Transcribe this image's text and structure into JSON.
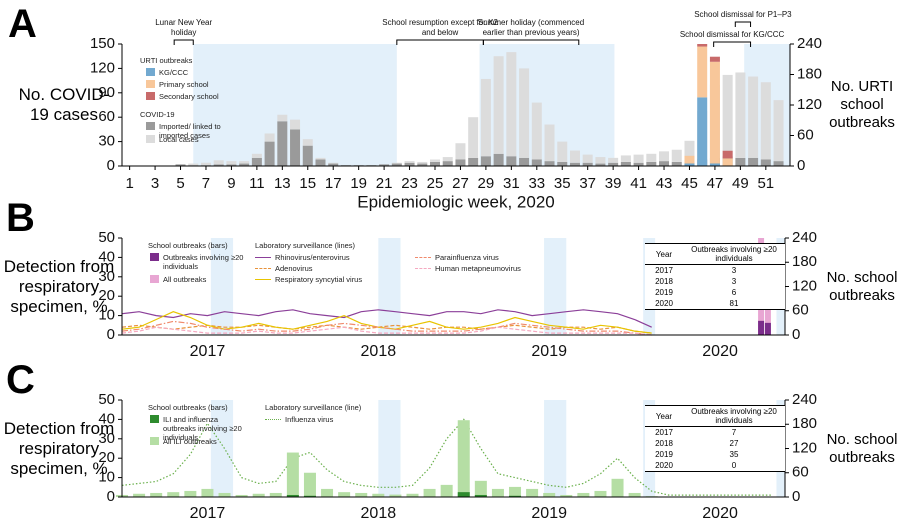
{
  "chart_data": [
    {
      "type": "bar",
      "panel_label": "A",
      "xlabel": "Epidemiologic week, 2020",
      "ylabel": "No. COVID-19 cases",
      "y2label": "No. URTI school outbreaks",
      "xlim": [
        0.4,
        52.9
      ],
      "xticks": [
        1,
        3,
        5,
        7,
        9,
        11,
        13,
        15,
        17,
        19,
        21,
        23,
        25,
        27,
        29,
        31,
        33,
        35,
        37,
        39,
        41,
        43,
        45,
        47,
        49,
        51
      ],
      "ylim": [
        0,
        150
      ],
      "yticks": [
        0,
        30,
        60,
        90,
        120,
        150
      ],
      "y2lim": [
        0,
        240
      ],
      "y2ticks": [
        0,
        60,
        120,
        180,
        240
      ],
      "shaded": [
        [
          6,
          22
        ],
        [
          28.5,
          39.1
        ],
        [
          49.3,
          52.9
        ]
      ],
      "annotations": [
        {
          "text": "Lunar New Year holiday",
          "x": [
            4.5,
            6
          ]
        },
        {
          "text": "School resumption except for K2 and below",
          "x": [
            22,
            28.8
          ]
        },
        {
          "text": "Summer holiday (commenced earlier than previous years)",
          "x": [
            28.8,
            36.3
          ]
        },
        {
          "text": "School dismissal for P1–P3",
          "x": [
            48.6,
            49.8
          ]
        },
        {
          "text": "School dismissal for KG/CCC",
          "x": [
            46.9,
            49.8
          ]
        }
      ],
      "x": [
        1,
        2,
        3,
        4,
        5,
        6,
        7,
        8,
        9,
        10,
        11,
        12,
        13,
        14,
        15,
        16,
        17,
        18,
        19,
        20,
        21,
        22,
        23,
        24,
        25,
        26,
        27,
        28,
        29,
        30,
        31,
        32,
        33,
        34,
        35,
        36,
        37,
        38,
        39,
        40,
        41,
        42,
        43,
        44,
        45,
        46,
        47,
        48,
        49,
        50,
        51,
        52
      ],
      "series_groups": [
        {
          "title": "URTI outbreaks",
          "mark": "bar",
          "axis": "y2",
          "stacked": true,
          "series": [
            {
              "name": "KG/CCC",
              "color": "#72a9d0",
              "x": [
                45,
                46,
                47,
                48
              ],
              "values": [
                5,
                135,
                5,
                0
              ]
            },
            {
              "name": "Primary school",
              "color": "#f8c79a",
              "x": [
                45,
                46,
                47,
                48
              ],
              "values": [
                15,
                100,
                200,
                15
              ]
            },
            {
              "name": "Secondary school",
              "color": "#c86a6a",
              "x": [
                45,
                46,
                47,
                48
              ],
              "values": [
                0,
                5,
                10,
                15
              ]
            }
          ]
        },
        {
          "title": "COVID-19",
          "mark": "bar",
          "stacked": true,
          "series": [
            {
              "name": "Imported/ linked to imported cases",
              "color": "#9a9a9a",
              "values": [
                0,
                0,
                0,
                0,
                2,
                1,
                1,
                2,
                2,
                3,
                10,
                30,
                55,
                45,
                25,
                8,
                3,
                1,
                1,
                1,
                2,
                3,
                4,
                3,
                5,
                6,
                8,
                10,
                12,
                15,
                12,
                10,
                8,
                6,
                5,
                4,
                4,
                3,
                4,
                5,
                4,
                5,
                6,
                5,
                6,
                8,
                10,
                12,
                10,
                10,
                8,
                6
              ]
            },
            {
              "name": "Local cases",
              "color": "#dcdcdc",
              "values": [
                0,
                0,
                0,
                0,
                0,
                2,
                3,
                5,
                4,
                3,
                5,
                10,
                8,
                12,
                8,
                2,
                1,
                0,
                0,
                0,
                0,
                1,
                2,
                2,
                3,
                5,
                20,
                50,
                95,
                120,
                128,
                110,
                70,
                45,
                25,
                15,
                10,
                8,
                6,
                8,
                10,
                10,
                12,
                15,
                25,
                60,
                90,
                100,
                105,
                100,
                95,
                75
              ]
            }
          ]
        }
      ]
    },
    {
      "type": "combo",
      "panel_label": "B",
      "ylabel": "Detection from respiratory specimen, %",
      "y2label": "No. school outbreaks",
      "xlim": [
        2017,
        2020.88
      ],
      "xticks": [
        {
          "value": 2017.5,
          "label": "2017"
        },
        {
          "value": 2018.5,
          "label": "2018"
        },
        {
          "value": 2019.5,
          "label": "2019"
        },
        {
          "value": 2020.5,
          "label": "2020"
        }
      ],
      "ylim": [
        0,
        50
      ],
      "yticks": [
        0,
        10,
        20,
        30,
        40,
        50
      ],
      "y2lim": [
        0,
        240
      ],
      "y2ticks": [
        0,
        60,
        120,
        180,
        240
      ],
      "shaded": [
        [
          2017.52,
          2017.65
        ],
        [
          2018.5,
          2018.63
        ],
        [
          2019.47,
          2019.6
        ],
        [
          2020.05,
          2020.12
        ],
        [
          2020.83,
          2020.88
        ]
      ],
      "x": [
        2017,
        2017.1,
        2017.2,
        2017.3,
        2017.4,
        2017.5,
        2017.6,
        2017.7,
        2017.8,
        2017.9,
        2018,
        2018.1,
        2018.2,
        2018.3,
        2018.4,
        2018.5,
        2018.6,
        2018.7,
        2018.8,
        2018.9,
        2019,
        2019.1,
        2019.2,
        2019.3,
        2019.4,
        2019.5,
        2019.6,
        2019.7,
        2019.8,
        2019.9,
        2020,
        2020.1,
        2020.2,
        2020.3,
        2020.4,
        2020.5,
        2020.6,
        2020.7,
        2020.8
      ],
      "series_groups": [
        {
          "title": "School outbreaks (bars)",
          "mark": "bar",
          "axis": "y2",
          "stacked": false,
          "series": [
            {
              "name": "Outbreaks involving ≥20 individuals",
              "color": "#7b2d8b",
              "x": [
                2020.74,
                2020.78
              ],
              "values": [
                35,
                30
              ]
            },
            {
              "name": "All outbreaks",
              "color": "#e8a6d3",
              "x": [
                2020.74,
                2020.78
              ],
              "values": [
                240,
                185
              ]
            }
          ]
        },
        {
          "title": "Laboratory surveillance (lines)",
          "mark": "line",
          "series": [
            {
              "name": "Rhinovirus/enterovirus",
              "color": "#8b3f99",
              "dash": "solid",
              "values": [
                11,
                12,
                10,
                9,
                11,
                10,
                12,
                11,
                10,
                12,
                13,
                11,
                10,
                9,
                12,
                13,
                12,
                11,
                10,
                12,
                12,
                11,
                13,
                12,
                10,
                11,
                12,
                13,
                12,
                11,
                8,
                4,
                null,
                null,
                null,
                null,
                null,
                null,
                null
              ]
            },
            {
              "name": "Adenovirus",
              "color": "#e8923a",
              "dash": "dashed",
              "values": [
                4,
                5,
                4,
                3,
                4,
                5,
                4,
                4,
                5,
                4,
                3,
                4,
                5,
                4,
                3,
                4,
                5,
                4,
                3,
                4,
                4,
                3,
                4,
                5,
                4,
                3,
                4,
                4,
                3,
                4,
                2,
                1,
                null,
                null,
                null,
                null,
                null,
                null,
                null
              ]
            },
            {
              "name": "Respiratory syncytial virus",
              "color": "#e8c400",
              "dash": "solid",
              "values": [
                3,
                4,
                8,
                12,
                9,
                5,
                3,
                4,
                6,
                4,
                3,
                5,
                7,
                10,
                6,
                4,
                3,
                5,
                7,
                4,
                3,
                4,
                6,
                9,
                7,
                5,
                4,
                3,
                5,
                4,
                2,
                1,
                null,
                null,
                null,
                null,
                null,
                null,
                null
              ]
            },
            {
              "name": "Parainfluenza virus",
              "color": "#f08a6c",
              "dash": "dashdot",
              "values": [
                2,
                3,
                5,
                7,
                6,
                4,
                3,
                2,
                3,
                2,
                2,
                3,
                5,
                6,
                5,
                4,
                3,
                2,
                2,
                2,
                2,
                3,
                4,
                6,
                5,
                4,
                3,
                2,
                2,
                2,
                1,
                0,
                null,
                null,
                null,
                null,
                null,
                null,
                null
              ]
            },
            {
              "name": "Human metapneumovirus",
              "color": "#f5a9c0",
              "dash": "dashed",
              "values": [
                1,
                2,
                4,
                3,
                2,
                1,
                1,
                1,
                2,
                1,
                1,
                2,
                3,
                4,
                2,
                1,
                1,
                1,
                1,
                1,
                1,
                2,
                4,
                3,
                2,
                1,
                1,
                1,
                1,
                1,
                1,
                0,
                null,
                null,
                null,
                null,
                null,
                null,
                null
              ]
            }
          ]
        }
      ],
      "table": {
        "header": [
          "Year",
          "Outbreaks involving ≥20 individuals"
        ],
        "rows": [
          [
            2017,
            3
          ],
          [
            2018,
            3
          ],
          [
            2019,
            6
          ],
          [
            2020,
            81
          ]
        ]
      }
    },
    {
      "type": "combo",
      "panel_label": "C",
      "ylabel": "Detection from respiratory specimen, %",
      "y2label": "No. school outbreaks",
      "xlim": [
        2017,
        2020.88
      ],
      "xticks": [
        {
          "value": 2017.5,
          "label": "2017"
        },
        {
          "value": 2018.5,
          "label": "2018"
        },
        {
          "value": 2019.5,
          "label": "2019"
        },
        {
          "value": 2020.5,
          "label": "2020"
        }
      ],
      "ylim": [
        0,
        50
      ],
      "yticks": [
        0,
        10,
        20,
        30,
        40,
        50
      ],
      "y2lim": [
        0,
        240
      ],
      "y2ticks": [
        0,
        60,
        120,
        180,
        240
      ],
      "shaded": [
        [
          2017.52,
          2017.65
        ],
        [
          2018.5,
          2018.63
        ],
        [
          2019.47,
          2019.6
        ],
        [
          2020.05,
          2020.12
        ],
        [
          2020.83,
          2020.88
        ]
      ],
      "x": [
        2017,
        2017.1,
        2017.2,
        2017.3,
        2017.4,
        2017.5,
        2017.6,
        2017.7,
        2017.8,
        2017.9,
        2018,
        2018.1,
        2018.2,
        2018.3,
        2018.4,
        2018.5,
        2018.6,
        2018.7,
        2018.8,
        2018.9,
        2019,
        2019.1,
        2019.2,
        2019.3,
        2019.4,
        2019.5,
        2019.6,
        2019.7,
        2019.8,
        2019.9,
        2020,
        2020.1,
        2020.2,
        2020.3,
        2020.4,
        2020.5,
        2020.6,
        2020.7,
        2020.8
      ],
      "series_groups": [
        {
          "title": "School outbreaks (bars)",
          "mark": "bar",
          "axis": "y2",
          "stacked": false,
          "series": [
            {
              "name": "ILI and influenza outbreaks involving ≥20 individuals",
              "color": "#2e8b2e",
              "values": [
                0,
                0,
                0,
                0,
                0,
                0,
                0,
                0,
                0,
                0,
                5,
                3,
                0,
                0,
                0,
                0,
                0,
                0,
                0,
                0,
                12,
                5,
                0,
                3,
                0,
                0,
                0,
                0,
                0,
                0,
                0,
                0,
                0,
                0,
                0,
                0,
                0,
                0,
                0
              ]
            },
            {
              "name": "All ILI outbreaks",
              "color": "#b5dea4",
              "values": [
                5,
                8,
                10,
                12,
                15,
                20,
                10,
                5,
                8,
                10,
                110,
                60,
                20,
                12,
                10,
                8,
                6,
                8,
                20,
                30,
                190,
                40,
                20,
                25,
                20,
                10,
                5,
                10,
                15,
                45,
                10,
                2,
                0,
                0,
                0,
                0,
                0,
                0,
                0
              ]
            }
          ]
        },
        {
          "title": "Laboratory surveillance (line)",
          "mark": "line",
          "series": [
            {
              "name": "Influenza virus",
              "color": "#6ab04c",
              "dash": "dotted",
              "values": [
                6,
                7,
                8,
                12,
                22,
                38,
                25,
                10,
                7,
                8,
                20,
                23,
                14,
                8,
                6,
                5,
                5,
                6,
                15,
                30,
                40,
                25,
                12,
                10,
                8,
                6,
                5,
                7,
                12,
                20,
                10,
                3,
                1,
                1,
                1,
                1,
                1,
                1,
                1
              ]
            }
          ]
        }
      ],
      "table": {
        "header": [
          "Year",
          "Outbreaks involving ≥20 individuals"
        ],
        "rows": [
          [
            2017,
            7
          ],
          [
            2018,
            27
          ],
          [
            2019,
            35
          ],
          [
            2020,
            0
          ]
        ]
      }
    }
  ]
}
